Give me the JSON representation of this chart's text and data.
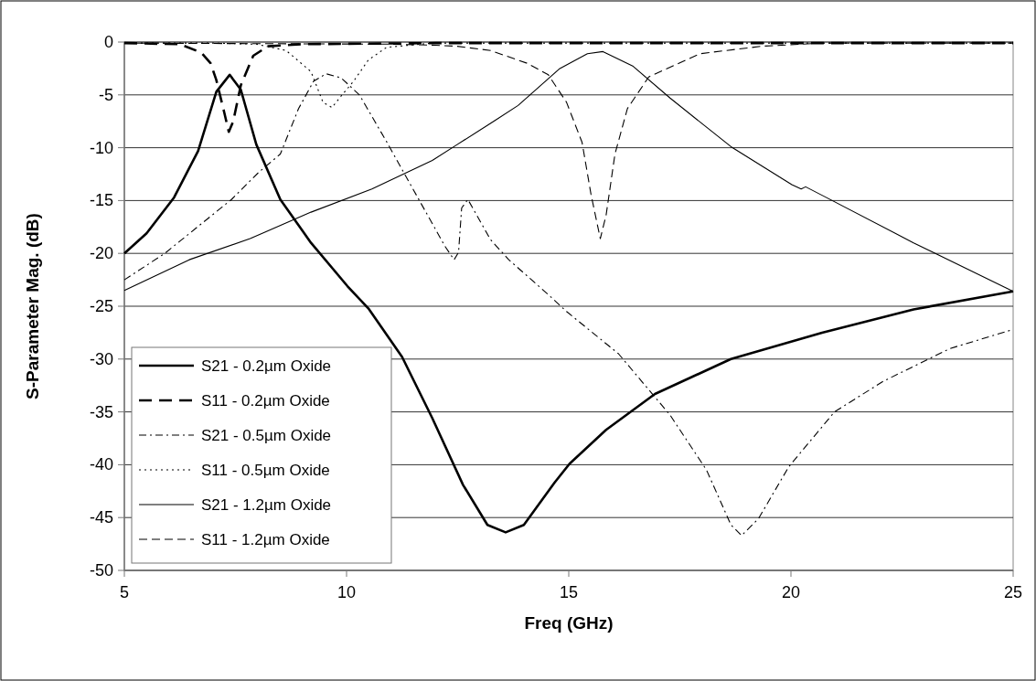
{
  "chart_data": {
    "type": "line",
    "xlabel": "Freq (GHz)",
    "ylabel": "S-Parameter Mag. (dB)",
    "xlim": [
      5,
      25
    ],
    "xticks": [
      5,
      10,
      15,
      20,
      25
    ],
    "ylim": [
      -50,
      0
    ],
    "yticks": [
      -50,
      -45,
      -40,
      -35,
      -30,
      -25,
      -20,
      -15,
      -10,
      -5,
      0
    ],
    "grid": "y",
    "legend": "bottom left",
    "series": [
      {
        "name": "S21 - 0.2µm Oxide",
        "color": "#000000",
        "line_style": "solid",
        "x": [
          5,
          5.5,
          6.12,
          6.66,
          7.07,
          7.37,
          7.62,
          7.97,
          8.51,
          9.2,
          10.02,
          10.49,
          11.25,
          11.93,
          12.62,
          13.17,
          13.58,
          13.99,
          14.68,
          15.02,
          15.84,
          16.94,
          18.65,
          20.7,
          22.76,
          25
        ],
        "values": [
          -20,
          -18.1,
          -14.7,
          -10.3,
          -4.7,
          -3.1,
          -4.5,
          -9.7,
          -14.9,
          -19,
          -23.1,
          -25.2,
          -29.8,
          -35.6,
          -41.9,
          -45.7,
          -46.4,
          -45.7,
          -41.7,
          -39.9,
          -36.7,
          -33.3,
          -30,
          -27.5,
          -25.3,
          -23.6
        ]
      },
      {
        "name": "S11 - 0.2µm Oxide",
        "color": "#000000",
        "line_style": "dashed",
        "x": [
          5,
          6.25,
          6.73,
          6.94,
          7.07,
          7.25,
          7.35,
          7.45,
          7.62,
          7.9,
          8.23,
          9,
          12,
          18,
          25
        ],
        "values": [
          -0.1,
          -0.2,
          -1,
          -2,
          -3.6,
          -6.7,
          -8.5,
          -7.5,
          -4.1,
          -1.3,
          -0.4,
          -0.2,
          -0.1,
          -0.1,
          -0.1
        ]
      },
      {
        "name": "S21 - 0.5µm Oxide",
        "color": "#000000",
        "line_style": "dashdot",
        "x": [
          5,
          5.91,
          7.41,
          8.03,
          8.51,
          8.92,
          9.26,
          9.54,
          9.88,
          10.29,
          10.91,
          11.6,
          12.21,
          12.42,
          12.52,
          12.59,
          12.73,
          13.24,
          13.65,
          14.54,
          14.95,
          16.12,
          17.28,
          18.1,
          18.65,
          18.89,
          19.27,
          19.95,
          20.98,
          22.08,
          23.58,
          25
        ],
        "values": [
          -22.5,
          -20,
          -14.9,
          -12.3,
          -10.6,
          -6.3,
          -3.7,
          -3,
          -3.4,
          -5,
          -9.5,
          -14.7,
          -19.3,
          -20.6,
          -19.9,
          -15.7,
          -14.9,
          -18.7,
          -20.6,
          -23.9,
          -25.5,
          -29.5,
          -35.3,
          -40.5,
          -45.7,
          -46.7,
          -45.1,
          -40.2,
          -35,
          -32.1,
          -29,
          -27.2
        ]
      },
      {
        "name": "S11 - 0.5µm Oxide",
        "color": "#000000",
        "line_style": "dotted",
        "x": [
          5,
          7,
          7.97,
          8.64,
          9.2,
          9.47,
          9.67,
          9.88,
          10.16,
          10.49,
          10.9,
          11.93,
          18,
          25
        ],
        "values": [
          -0.1,
          -0.1,
          -0.2,
          -0.8,
          -2.8,
          -5.7,
          -6.2,
          -5.1,
          -3.7,
          -1.7,
          -0.5,
          -0.1,
          -0.1,
          -0.1
        ]
      },
      {
        "name": "S21 - 1.2µm Oxide",
        "color": "#000000",
        "line_style": "solid",
        "x": [
          5,
          6.46,
          7.83,
          9.2,
          10.57,
          11.93,
          12.49,
          13.31,
          13.86,
          14.8,
          15.42,
          15.77,
          16.45,
          17.28,
          18.65,
          20.02,
          20.23,
          20.33,
          20.7,
          22.76,
          24.81,
          25
        ],
        "values": [
          -23.5,
          -20.6,
          -18.6,
          -16.1,
          -13.9,
          -11.2,
          -9.7,
          -7.5,
          -6,
          -2.5,
          -1.1,
          -0.9,
          -2.3,
          -5.3,
          -9.9,
          -13.5,
          -13.9,
          -13.7,
          -14.5,
          -19,
          -23.2,
          -23.6
        ]
      },
      {
        "name": "S11 - 1.2µm Oxide",
        "color": "#000000",
        "line_style": "dashed",
        "x": [
          5,
          11,
          12,
          12.49,
          13.24,
          14.06,
          14.54,
          14.95,
          15.3,
          15.5,
          15.71,
          15.84,
          16.04,
          16.32,
          16.8,
          17.96,
          19.33,
          20.7,
          25
        ],
        "values": [
          -0.1,
          -0.2,
          -0.3,
          -0.4,
          -0.8,
          -2,
          -3.1,
          -5.7,
          -9.5,
          -14.4,
          -18.6,
          -16.4,
          -10.6,
          -6.3,
          -3.3,
          -1.1,
          -0.4,
          -0.1,
          -0.1
        ]
      }
    ]
  }
}
